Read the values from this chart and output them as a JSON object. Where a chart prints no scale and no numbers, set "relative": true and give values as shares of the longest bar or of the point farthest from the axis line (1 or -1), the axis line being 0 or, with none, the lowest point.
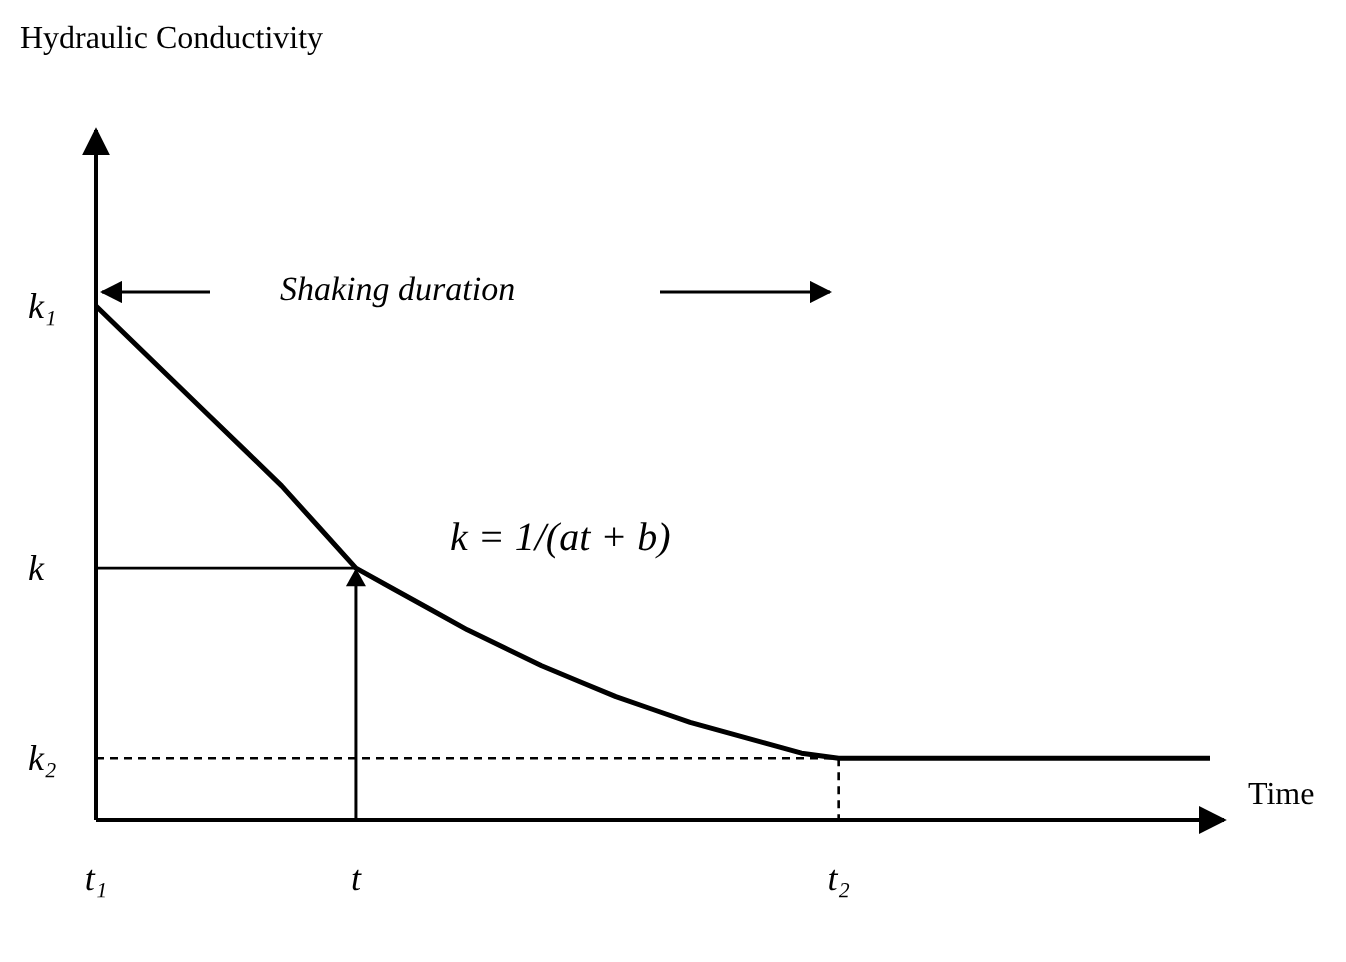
{
  "chart_data": {
    "type": "line",
    "relative": true,
    "xlabel": "Time",
    "categories": [
      "t₁",
      null,
      null,
      null,
      null,
      null,
      null,
      "t",
      null,
      null,
      null,
      null,
      null,
      null,
      null,
      null,
      null,
      null,
      null,
      null,
      "t₂",
      null,
      null,
      null,
      null,
      null,
      null,
      null,
      null,
      null,
      null
    ],
    "series": [
      {
        "color": "#000000",
        "line_style": "solid",
        "values": [
          1,
          0.93,
          0.86,
          0.79,
          0.72,
          0.65,
          0.57,
          0.49,
          0.45,
          0.41,
          0.37,
          0.335,
          0.3,
          0.27,
          0.24,
          0.215,
          0.19,
          0.17,
          0.15,
          0.13,
          0.12,
          0.12,
          0.12,
          0.12,
          0.12,
          0.12,
          0.12,
          0.12,
          0.12,
          0.12,
          0.12
        ]
      },
      {
        "color": "#000000",
        "line_style": "dashed",
        "values": [
          0.12,
          0.12,
          0.12,
          0.12,
          0.12,
          0.12,
          0.12,
          0.12,
          0.12,
          0.12,
          0.12,
          0.12,
          0.12,
          0.12,
          0.12,
          0.12,
          0.12,
          0.12,
          0.12,
          0.12,
          0.12,
          null,
          null,
          null,
          null,
          null,
          null,
          null,
          null,
          null,
          null
        ]
      },
      {
        "color": "#000000",
        "line_style": "solid",
        "values": [
          0.49,
          0.49,
          0.49,
          0.49,
          0.49,
          0.49,
          0.49,
          0.49,
          null,
          null,
          null,
          null,
          null,
          null,
          null,
          null,
          null,
          null,
          null,
          null,
          null,
          null,
          null,
          null,
          null,
          null,
          null,
          null,
          null,
          null,
          null
        ]
      }
    ],
    "annotations": [
      "Hydraulic Conductivity",
      "Shaking duration",
      "k = 1/(at + b)",
      {
        "text": "k₁",
        "x": "t₁",
        "y": 1
      },
      {
        "text": "k",
        "x": "t₁",
        "y": 0.49
      },
      {
        "text": "k₂",
        "x": "t₁",
        "y": 0.12
      }
    ]
  }
}
